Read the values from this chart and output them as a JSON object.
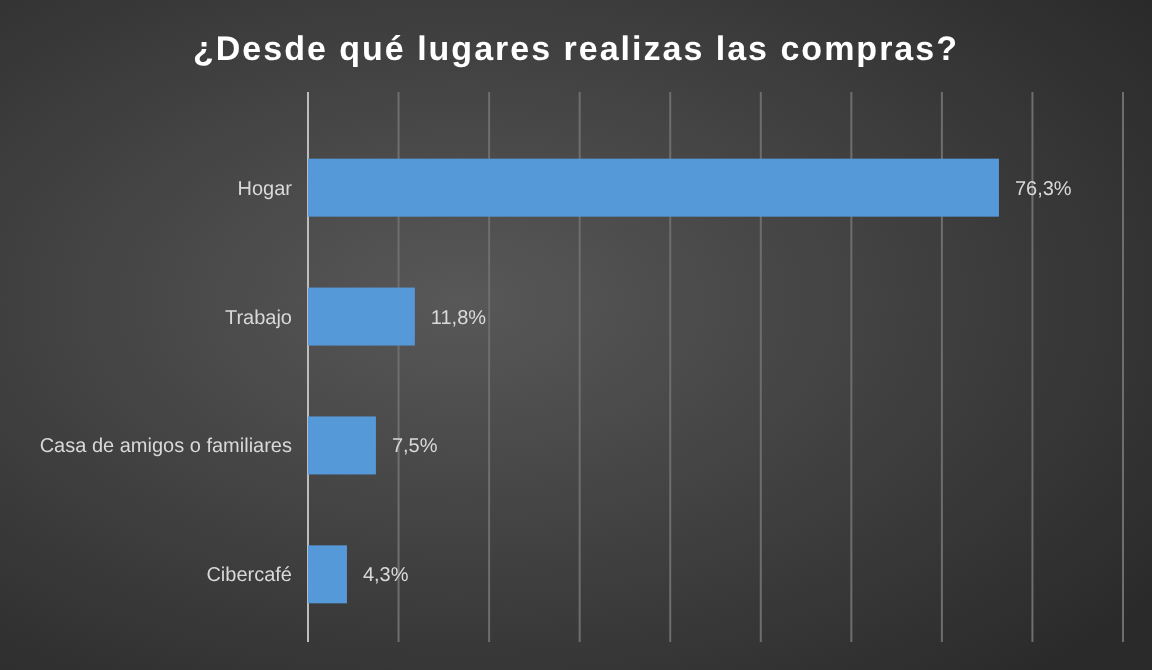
{
  "chart_data": {
    "type": "bar",
    "orientation": "horizontal",
    "title": "¿Desde qué lugares realizas las compras?",
    "categories": [
      "Hogar",
      "Trabajo",
      "Casa de amigos o familiares",
      "Cibercafé"
    ],
    "values": [
      76.3,
      11.8,
      7.5,
      4.3
    ],
    "value_labels": [
      "76,3%",
      "11,8%",
      "7,5%",
      "4,3%"
    ],
    "color": "#5699d8",
    "xlim": [
      0,
      90
    ],
    "xticks": [
      {
        "value": 0,
        "label": null
      },
      {
        "value": 10,
        "label": null
      },
      {
        "value": 20,
        "label": null
      },
      {
        "value": 30,
        "label": null
      },
      {
        "value": 40,
        "label": null
      },
      {
        "value": 50,
        "label": null
      },
      {
        "value": 60,
        "label": null
      },
      {
        "value": 70,
        "label": null
      },
      {
        "value": 80,
        "label": null
      },
      {
        "value": 90,
        "label": null
      }
    ],
    "grid": "x",
    "tick_labels": "y"
  }
}
